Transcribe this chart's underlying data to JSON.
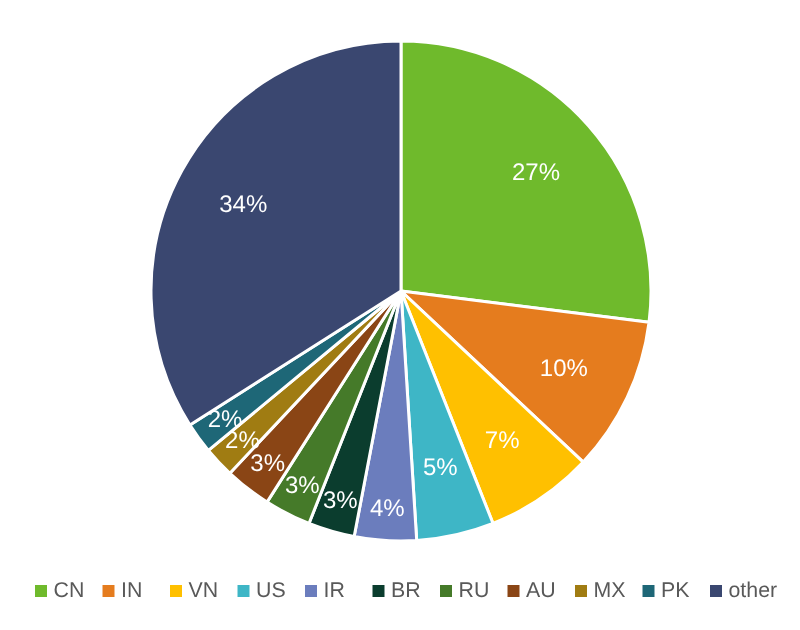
{
  "chart_data": {
    "type": "pie",
    "categories": [
      "CN",
      "IN",
      "VN",
      "US",
      "IR",
      "BR",
      "RU",
      "AU",
      "MX",
      "PK",
      "other"
    ],
    "values": [
      27,
      10,
      7,
      5,
      4,
      3,
      3,
      3,
      2,
      2,
      34
    ],
    "colors": [
      "#6fba2c",
      "#e57c1e",
      "#ffc000",
      "#3eb6c6",
      "#6b7dbd",
      "#0b3d2e",
      "#457a29",
      "#8a4515",
      "#a07c12",
      "#1e6777",
      "#3a4770"
    ],
    "value_labels": [
      "27%",
      "10%",
      "7%",
      "5%",
      "4%",
      "3%",
      "3%",
      "3%",
      "2%",
      "2%",
      "34%"
    ],
    "legend": "bottom"
  }
}
